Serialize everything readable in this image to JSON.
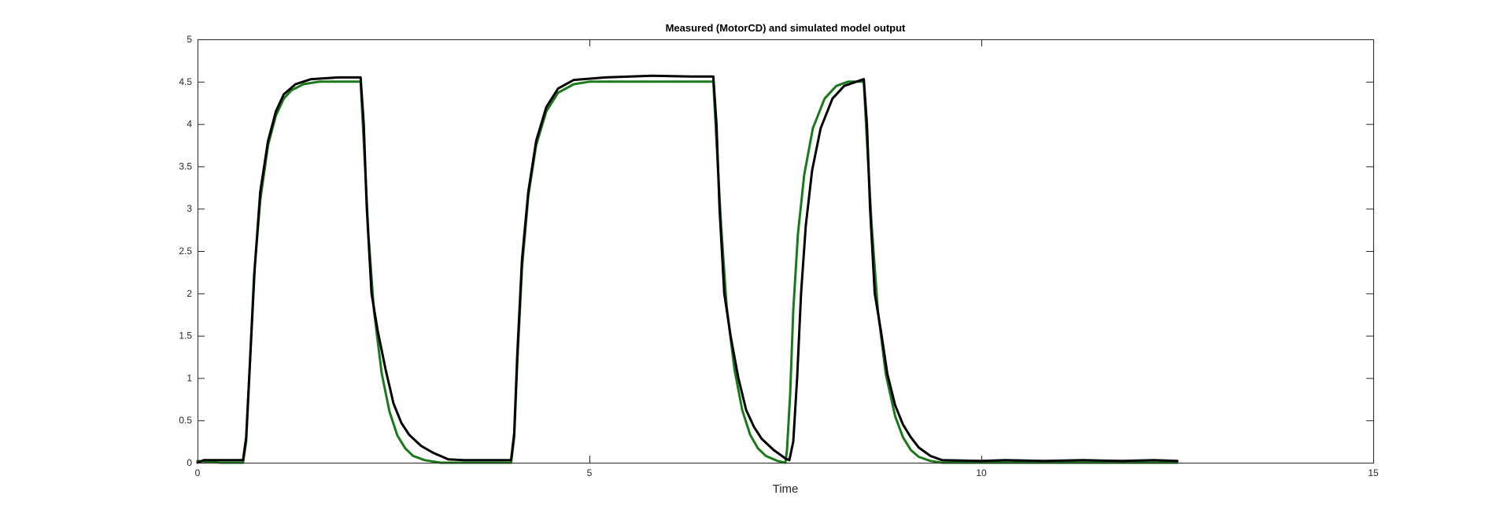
{
  "chart_data": {
    "type": "line",
    "title": "Measured (MotorCD) and simulated model output",
    "xlabel": "Time",
    "ylabel": "",
    "xlim": [
      0,
      15
    ],
    "ylim": [
      0,
      5
    ],
    "xticks": [
      0,
      5,
      10,
      15
    ],
    "xtick_labels": [
      "0",
      "5",
      "10",
      "15"
    ],
    "yticks": [
      0,
      0.5,
      1,
      1.5,
      2,
      2.5,
      3,
      3.5,
      4,
      4.5,
      5
    ],
    "ytick_labels": [
      "0",
      "0.5",
      "1",
      "1.5",
      "2",
      "2.5",
      "3",
      "3.5",
      "4",
      "4.5",
      "5"
    ],
    "grid": false,
    "legend": "none",
    "series": [
      {
        "color": "#1a7a1a",
        "points": [
          [
            0.0,
            0.02
          ],
          [
            0.3,
            0.0
          ],
          [
            0.58,
            0.0
          ],
          [
            0.62,
            0.25
          ],
          [
            0.66,
            1.0
          ],
          [
            0.72,
            2.2
          ],
          [
            0.8,
            3.1
          ],
          [
            0.9,
            3.75
          ],
          [
            1.0,
            4.1
          ],
          [
            1.1,
            4.3
          ],
          [
            1.2,
            4.4
          ],
          [
            1.35,
            4.47
          ],
          [
            1.55,
            4.5
          ],
          [
            2.08,
            4.5
          ],
          [
            2.12,
            3.8
          ],
          [
            2.18,
            2.7
          ],
          [
            2.25,
            1.8
          ],
          [
            2.35,
            1.05
          ],
          [
            2.45,
            0.6
          ],
          [
            2.55,
            0.32
          ],
          [
            2.65,
            0.17
          ],
          [
            2.75,
            0.08
          ],
          [
            2.9,
            0.03
          ],
          [
            3.1,
            0.0
          ],
          [
            4.0,
            0.0
          ],
          [
            4.04,
            0.3
          ],
          [
            4.08,
            1.2
          ],
          [
            4.14,
            2.3
          ],
          [
            4.22,
            3.15
          ],
          [
            4.32,
            3.75
          ],
          [
            4.45,
            4.15
          ],
          [
            4.6,
            4.37
          ],
          [
            4.8,
            4.47
          ],
          [
            5.0,
            4.5
          ],
          [
            6.58,
            4.5
          ],
          [
            6.62,
            3.8
          ],
          [
            6.68,
            2.8
          ],
          [
            6.75,
            1.85
          ],
          [
            6.85,
            1.1
          ],
          [
            6.95,
            0.62
          ],
          [
            7.05,
            0.33
          ],
          [
            7.15,
            0.17
          ],
          [
            7.25,
            0.08
          ],
          [
            7.4,
            0.02
          ],
          [
            7.5,
            0.0
          ],
          [
            7.52,
            0.15
          ],
          [
            7.56,
            0.8
          ],
          [
            7.6,
            1.8
          ],
          [
            7.66,
            2.7
          ],
          [
            7.74,
            3.4
          ],
          [
            7.85,
            3.95
          ],
          [
            8.0,
            4.3
          ],
          [
            8.15,
            4.45
          ],
          [
            8.3,
            4.5
          ],
          [
            8.5,
            4.5
          ],
          [
            8.54,
            3.8
          ],
          [
            8.6,
            2.8
          ],
          [
            8.68,
            1.8
          ],
          [
            8.78,
            1.05
          ],
          [
            8.9,
            0.55
          ],
          [
            9.0,
            0.3
          ],
          [
            9.1,
            0.15
          ],
          [
            9.2,
            0.07
          ],
          [
            9.35,
            0.02
          ],
          [
            9.5,
            0.0
          ],
          [
            12.5,
            0.0
          ]
        ]
      },
      {
        "color": "#000000",
        "points": [
          [
            0.0,
            0.0
          ],
          [
            0.08,
            0.03
          ],
          [
            0.58,
            0.03
          ],
          [
            0.62,
            0.3
          ],
          [
            0.67,
            1.2
          ],
          [
            0.73,
            2.3
          ],
          [
            0.8,
            3.2
          ],
          [
            0.9,
            3.8
          ],
          [
            1.0,
            4.15
          ],
          [
            1.1,
            4.35
          ],
          [
            1.25,
            4.47
          ],
          [
            1.45,
            4.53
          ],
          [
            1.8,
            4.55
          ],
          [
            2.08,
            4.55
          ],
          [
            2.12,
            4.0
          ],
          [
            2.16,
            3.0
          ],
          [
            2.22,
            2.0
          ],
          [
            2.3,
            1.55
          ],
          [
            2.4,
            1.1
          ],
          [
            2.5,
            0.7
          ],
          [
            2.6,
            0.47
          ],
          [
            2.7,
            0.33
          ],
          [
            2.85,
            0.2
          ],
          [
            3.0,
            0.12
          ],
          [
            3.2,
            0.04
          ],
          [
            3.4,
            0.03
          ],
          [
            4.0,
            0.03
          ],
          [
            4.04,
            0.35
          ],
          [
            4.08,
            1.3
          ],
          [
            4.14,
            2.4
          ],
          [
            4.22,
            3.2
          ],
          [
            4.32,
            3.8
          ],
          [
            4.45,
            4.2
          ],
          [
            4.6,
            4.42
          ],
          [
            4.8,
            4.52
          ],
          [
            5.2,
            4.55
          ],
          [
            5.8,
            4.57
          ],
          [
            6.3,
            4.56
          ],
          [
            6.58,
            4.56
          ],
          [
            6.62,
            4.0
          ],
          [
            6.66,
            3.0
          ],
          [
            6.72,
            2.0
          ],
          [
            6.8,
            1.5
          ],
          [
            6.9,
            1.0
          ],
          [
            7.0,
            0.62
          ],
          [
            7.1,
            0.42
          ],
          [
            7.2,
            0.28
          ],
          [
            7.35,
            0.15
          ],
          [
            7.5,
            0.05
          ],
          [
            7.55,
            0.03
          ],
          [
            7.6,
            0.25
          ],
          [
            7.65,
            1.0
          ],
          [
            7.7,
            2.0
          ],
          [
            7.76,
            2.8
          ],
          [
            7.84,
            3.45
          ],
          [
            7.95,
            3.95
          ],
          [
            8.1,
            4.3
          ],
          [
            8.25,
            4.45
          ],
          [
            8.5,
            4.53
          ],
          [
            8.54,
            4.0
          ],
          [
            8.58,
            3.0
          ],
          [
            8.64,
            2.0
          ],
          [
            8.72,
            1.55
          ],
          [
            8.8,
            1.05
          ],
          [
            8.9,
            0.68
          ],
          [
            9.0,
            0.45
          ],
          [
            9.1,
            0.3
          ],
          [
            9.2,
            0.18
          ],
          [
            9.35,
            0.08
          ],
          [
            9.5,
            0.03
          ],
          [
            10.0,
            0.02
          ],
          [
            10.3,
            0.03
          ],
          [
            10.8,
            0.02
          ],
          [
            11.3,
            0.03
          ],
          [
            11.8,
            0.02
          ],
          [
            12.2,
            0.03
          ],
          [
            12.5,
            0.02
          ]
        ]
      }
    ]
  }
}
